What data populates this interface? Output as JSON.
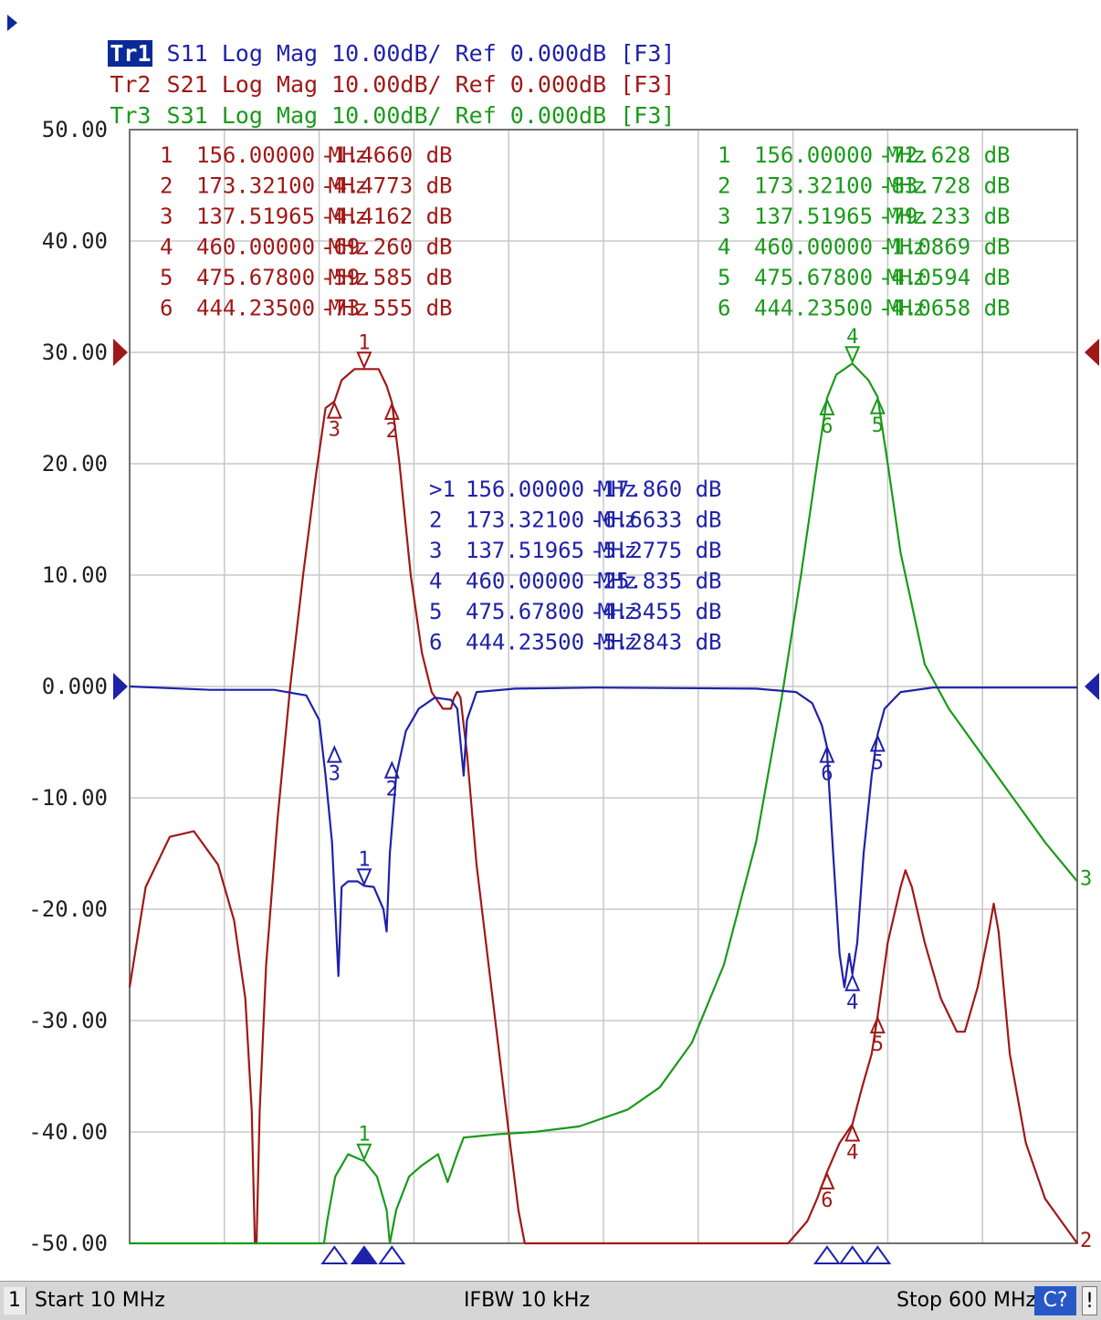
{
  "traces_header": [
    {
      "name": "Tr1",
      "text": " S11 Log Mag 10.00dB/ Ref 0.000dB [F3]",
      "color": "#1f22a8",
      "active": true
    },
    {
      "name": "Tr2",
      "text": " S21 Log Mag 10.00dB/ Ref 0.000dB [F3]",
      "color": "#a01818",
      "active": false
    },
    {
      "name": "Tr3",
      "text": " S31 Log Mag 10.00dB/ Ref 0.000dB [F3]",
      "color": "#1a9a1a",
      "active": false
    }
  ],
  "status": {
    "channel": "1",
    "start": "Start 10 MHz",
    "ifbw": "IFBW 10 kHz",
    "stop": "Stop 600 MHz",
    "cal": "C?",
    "excl": "!"
  },
  "chart_data": {
    "type": "line",
    "xlim": [
      10,
      600
    ],
    "ylim": [
      -50,
      50
    ],
    "x_unit": "MHz",
    "y_unit": "dB",
    "grid": true,
    "y_ticks": [
      "50.00",
      "40.00",
      "30.00",
      "20.00",
      "10.00",
      "0.000",
      "-10.00",
      "-20.00",
      "-30.00",
      "-40.00",
      "-50.00"
    ],
    "series": [
      {
        "name": "S11",
        "color": "#1f22a8",
        "points": [
          [
            10,
            0
          ],
          [
            60,
            -0.3
          ],
          [
            100,
            -0.3
          ],
          [
            120,
            -0.8
          ],
          [
            128,
            -3
          ],
          [
            132,
            -8
          ],
          [
            136,
            -14
          ],
          [
            138,
            -20
          ],
          [
            140,
            -26
          ],
          [
            142,
            -18
          ],
          [
            146,
            -17.5
          ],
          [
            152,
            -17.5
          ],
          [
            156,
            -17.9
          ],
          [
            162,
            -18
          ],
          [
            168,
            -20
          ],
          [
            170,
            -22
          ],
          [
            172,
            -15
          ],
          [
            176,
            -8
          ],
          [
            182,
            -4
          ],
          [
            190,
            -2
          ],
          [
            200,
            -1
          ],
          [
            210,
            -1.2
          ],
          [
            214,
            -2
          ],
          [
            216,
            -5
          ],
          [
            218,
            -8
          ],
          [
            220,
            -3
          ],
          [
            226,
            -0.5
          ],
          [
            250,
            -0.2
          ],
          [
            300,
            -0.1
          ],
          [
            400,
            -0.2
          ],
          [
            425,
            -0.5
          ],
          [
            435,
            -1.5
          ],
          [
            441,
            -3.5
          ],
          [
            444,
            -5.3
          ],
          [
            448,
            -15
          ],
          [
            452,
            -24
          ],
          [
            455,
            -27
          ],
          [
            458,
            -24
          ],
          [
            460,
            -25.8
          ],
          [
            463,
            -23
          ],
          [
            467,
            -15
          ],
          [
            472,
            -8
          ],
          [
            475.7,
            -4.3
          ],
          [
            480,
            -2
          ],
          [
            490,
            -0.5
          ],
          [
            510,
            -0.1
          ],
          [
            600,
            -0.1
          ]
        ]
      },
      {
        "name": "S21",
        "color": "#a01818",
        "points": [
          [
            10,
            -27
          ],
          [
            20,
            -18
          ],
          [
            35,
            -13.5
          ],
          [
            50,
            -13
          ],
          [
            65,
            -16
          ],
          [
            75,
            -21
          ],
          [
            82,
            -28
          ],
          [
            86,
            -38
          ],
          [
            88,
            -50
          ],
          [
            89,
            -50
          ],
          [
            91,
            -38
          ],
          [
            95,
            -25
          ],
          [
            102,
            -12
          ],
          [
            110,
            0
          ],
          [
            118,
            10
          ],
          [
            126,
            19
          ],
          [
            132,
            25
          ],
          [
            137.5,
            25.6
          ],
          [
            142,
            27.5
          ],
          [
            150,
            28.5
          ],
          [
            156,
            28.5
          ],
          [
            165,
            28.5
          ],
          [
            170,
            27
          ],
          [
            173.3,
            25.5
          ],
          [
            178,
            20
          ],
          [
            185,
            10
          ],
          [
            192,
            3
          ],
          [
            198,
            -0.5
          ],
          [
            205,
            -2
          ],
          [
            210,
            -2
          ],
          [
            212,
            -1
          ],
          [
            214,
            -0.5
          ],
          [
            216,
            -1
          ],
          [
            220,
            -6
          ],
          [
            226,
            -16
          ],
          [
            236,
            -28
          ],
          [
            246,
            -40
          ],
          [
            252,
            -47
          ],
          [
            256,
            -50
          ],
          [
            330,
            -50
          ],
          [
            420,
            -50
          ],
          [
            432,
            -48
          ],
          [
            438,
            -46
          ],
          [
            444.2,
            -43.6
          ],
          [
            452,
            -41
          ],
          [
            460,
            -39.3
          ],
          [
            466,
            -36
          ],
          [
            472,
            -33
          ],
          [
            475.7,
            -29.6
          ],
          [
            482,
            -23
          ],
          [
            490,
            -18
          ],
          [
            493,
            -16.5
          ],
          [
            497,
            -18
          ],
          [
            505,
            -23
          ],
          [
            515,
            -28
          ],
          [
            525,
            -31
          ],
          [
            530,
            -31
          ],
          [
            538,
            -27
          ],
          [
            545,
            -22
          ],
          [
            548,
            -19.5
          ],
          [
            551,
            -22
          ],
          [
            558,
            -33
          ],
          [
            568,
            -41
          ],
          [
            580,
            -46
          ],
          [
            590,
            -48
          ],
          [
            600,
            -50
          ]
        ]
      },
      {
        "name": "S31",
        "color": "#1a9a1a",
        "points": [
          [
            10,
            -50
          ],
          [
            131,
            -50
          ],
          [
            133,
            -48
          ],
          [
            138,
            -44
          ],
          [
            146,
            -42
          ],
          [
            154,
            -42.5
          ],
          [
            156,
            -42.6
          ],
          [
            164,
            -44
          ],
          [
            170,
            -47
          ],
          [
            172,
            -50
          ],
          [
            176,
            -47
          ],
          [
            184,
            -44
          ],
          [
            192,
            -43
          ],
          [
            202,
            -42
          ],
          [
            208,
            -44.5
          ],
          [
            214,
            -42
          ],
          [
            218,
            -40.5
          ],
          [
            240,
            -40.2
          ],
          [
            262,
            -40
          ],
          [
            290,
            -39.5
          ],
          [
            320,
            -38
          ],
          [
            340,
            -36
          ],
          [
            360,
            -32
          ],
          [
            380,
            -25
          ],
          [
            400,
            -14
          ],
          [
            416,
            -1
          ],
          [
            428,
            10
          ],
          [
            438,
            20
          ],
          [
            444.2,
            25.9
          ],
          [
            450,
            28
          ],
          [
            460,
            29
          ],
          [
            470,
            27.5
          ],
          [
            475.7,
            26
          ],
          [
            482,
            20
          ],
          [
            490,
            12
          ],
          [
            505,
            2
          ],
          [
            520,
            -2
          ],
          [
            540,
            -6
          ],
          [
            560,
            -10
          ],
          [
            580,
            -14
          ],
          [
            600,
            -17.5
          ]
        ]
      }
    ],
    "marker_tables": [
      {
        "trace": "S21",
        "color": "#a01818",
        "rows": [
          [
            "1",
            "156.00000 MHz",
            "-1.4660 dB"
          ],
          [
            "2",
            "173.32100 MHz",
            "-4.4773 dB"
          ],
          [
            "3",
            "137.51965 MHz",
            "-4.4162 dB"
          ],
          [
            "4",
            "460.00000 MHz",
            "-69.260 dB"
          ],
          [
            "5",
            "475.67800 MHz",
            "-59.585 dB"
          ],
          [
            "6",
            "444.23500 MHz",
            "-73.555 dB"
          ]
        ]
      },
      {
        "trace": "S31",
        "color": "#1a9a1a",
        "rows": [
          [
            "1",
            "156.00000 MHz",
            "-72.628 dB"
          ],
          [
            "2",
            "173.32100 MHz",
            "-83.728 dB"
          ],
          [
            "3",
            "137.51965 MHz",
            "-79.233 dB"
          ],
          [
            "4",
            "460.00000 MHz",
            "-1.0869 dB"
          ],
          [
            "5",
            "475.67800 MHz",
            "-4.0594 dB"
          ],
          [
            "6",
            "444.23500 MHz",
            "-4.0658 dB"
          ]
        ]
      },
      {
        "trace": "S11",
        "color": "#1f22a8",
        "rows": [
          [
            ">1",
            "156.00000 MHz",
            "-17.860 dB"
          ],
          [
            "2",
            "173.32100 MHz",
            "-6.6633 dB"
          ],
          [
            "3",
            "137.51965 MHz",
            "-5.2775 dB"
          ],
          [
            "4",
            "460.00000 MHz",
            "-25.835 dB"
          ],
          [
            "5",
            "475.67800 MHz",
            "-4.3455 dB"
          ],
          [
            "6",
            "444.23500 MHz",
            "-5.2843 dB"
          ]
        ]
      }
    ],
    "trace_markers": [
      {
        "trace": "S21",
        "color": "#a01818",
        "markers": [
          {
            "label": "1",
            "x": 156,
            "y": 28.5,
            "dir": "down"
          },
          {
            "label": "2",
            "x": 173.3,
            "y": 25.5,
            "dir": "up"
          },
          {
            "label": "3",
            "x": 137.5,
            "y": 25.6,
            "dir": "up"
          },
          {
            "label": "4",
            "x": 460,
            "y": -39.3,
            "dir": "up"
          },
          {
            "label": "5",
            "x": 475.7,
            "y": -29.6,
            "dir": "up"
          },
          {
            "label": "6",
            "x": 444.2,
            "y": -43.6,
            "dir": "up"
          }
        ]
      },
      {
        "trace": "S31",
        "color": "#1a9a1a",
        "markers": [
          {
            "label": "1",
            "x": 156,
            "y": -42.6,
            "dir": "down"
          },
          {
            "label": "4",
            "x": 460,
            "y": 29,
            "dir": "down"
          },
          {
            "label": "5",
            "x": 475.7,
            "y": 26,
            "dir": "up"
          },
          {
            "label": "6",
            "x": 444.2,
            "y": 25.9,
            "dir": "up"
          }
        ]
      },
      {
        "trace": "S11",
        "color": "#1f22a8",
        "markers": [
          {
            "label": "1",
            "x": 156,
            "y": -17.9,
            "dir": "down"
          },
          {
            "label": "2",
            "x": 173.3,
            "y": -6.7,
            "dir": "up"
          },
          {
            "label": "3",
            "x": 137.5,
            "y": -5.3,
            "dir": "up"
          },
          {
            "label": "4",
            "x": 460,
            "y": -25.8,
            "dir": "up"
          },
          {
            "label": "5",
            "x": 475.7,
            "y": -4.3,
            "dir": "up"
          },
          {
            "label": "6",
            "x": 444.2,
            "y": -5.3,
            "dir": "up"
          }
        ]
      }
    ],
    "trace_end_labels": [
      {
        "trace": "S31",
        "label": "3",
        "y": -17.5,
        "color": "#1a9a1a"
      },
      {
        "trace": "S21",
        "label": "2",
        "y": -50,
        "color": "#a01818"
      }
    ],
    "bottom_markers": [
      {
        "x": 137.5,
        "filled": false
      },
      {
        "x": 156,
        "filled": true
      },
      {
        "x": 173.3,
        "filled": false
      },
      {
        "x": 444.2,
        "filled": false
      },
      {
        "x": 460,
        "filled": false
      },
      {
        "x": 475.7,
        "filled": false
      }
    ],
    "ref_markers": [
      {
        "y": 30,
        "color": "#a01818"
      },
      {
        "y": 0,
        "color": "#1f22a8"
      }
    ]
  }
}
